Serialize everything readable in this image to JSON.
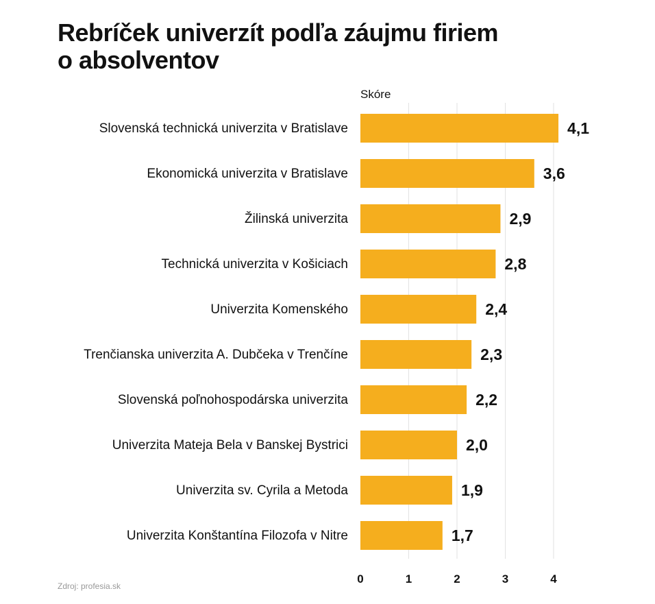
{
  "title_lines": [
    "Rebríček univerzít podľa záujmu firiem",
    "o absolventov"
  ],
  "source": "Zdroj: profesia.sk",
  "colors": {
    "bar": "#F5AE1E",
    "grid": "#E2E2E2",
    "text": "#111111"
  },
  "chart_data": {
    "type": "bar",
    "orientation": "horizontal",
    "axis_title": "Skóre",
    "categories": [
      "Slovenská technická univerzita v Bratislave",
      "Ekonomická univerzita v Bratislave",
      "Žilinská univerzita",
      "Technická univerzita v Košiciach",
      "Univerzita Komenského",
      "Trenčianska univerzita A. Dubčeka v Trenčíne",
      "Slovenská poľnohospodárska univerzita",
      "Univerzita Mateja Bela v Banskej Bystrici",
      "Univerzita sv. Cyrila a Metoda",
      "Univerzita Konštantína Filozofa v Nitre"
    ],
    "values": [
      4.1,
      3.6,
      2.9,
      2.8,
      2.4,
      2.3,
      2.2,
      2.0,
      1.9,
      1.7
    ],
    "value_labels": [
      "4,1",
      "3,6",
      "2,9",
      "2,8",
      "2,4",
      "2,3",
      "2,2",
      "2,0",
      "1,9",
      "1,7"
    ],
    "xlim": [
      0,
      4.4
    ],
    "ticks": [
      0,
      1,
      2,
      3,
      4
    ],
    "tick_labels": [
      "0",
      "1",
      "2",
      "3",
      "4"
    ],
    "grid": true
  }
}
